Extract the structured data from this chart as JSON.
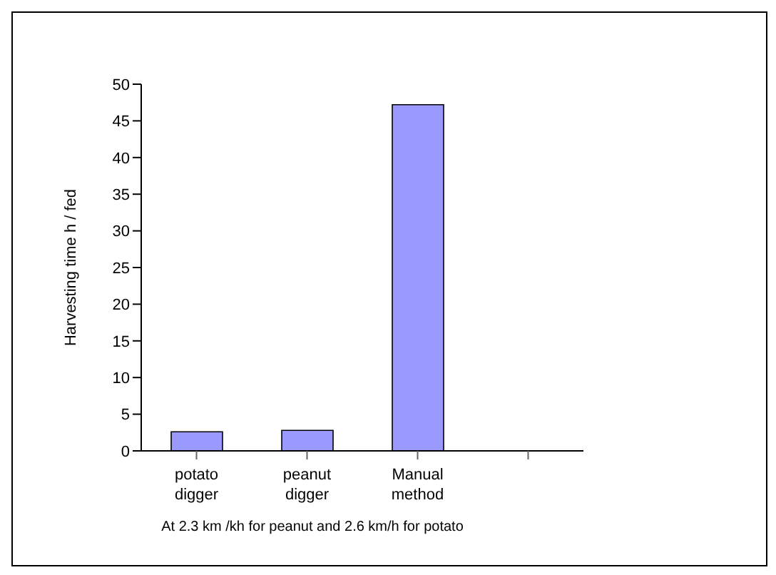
{
  "chart_data": {
    "type": "bar",
    "ylabel": "Harvesting  time h / fed",
    "categories": [
      "potato digger",
      "peanut digger",
      "Manual method",
      null
    ],
    "values": [
      2.6,
      2.8,
      47.2,
      null
    ],
    "color": "#9999ff",
    "ylim": [
      0,
      50
    ],
    "yticks": [
      0,
      5,
      10,
      15,
      20,
      25,
      30,
      35,
      40,
      45,
      50
    ],
    "annotations": [
      "At 2.3 km /kh for peanut and 2.6 km/h for potato"
    ]
  }
}
